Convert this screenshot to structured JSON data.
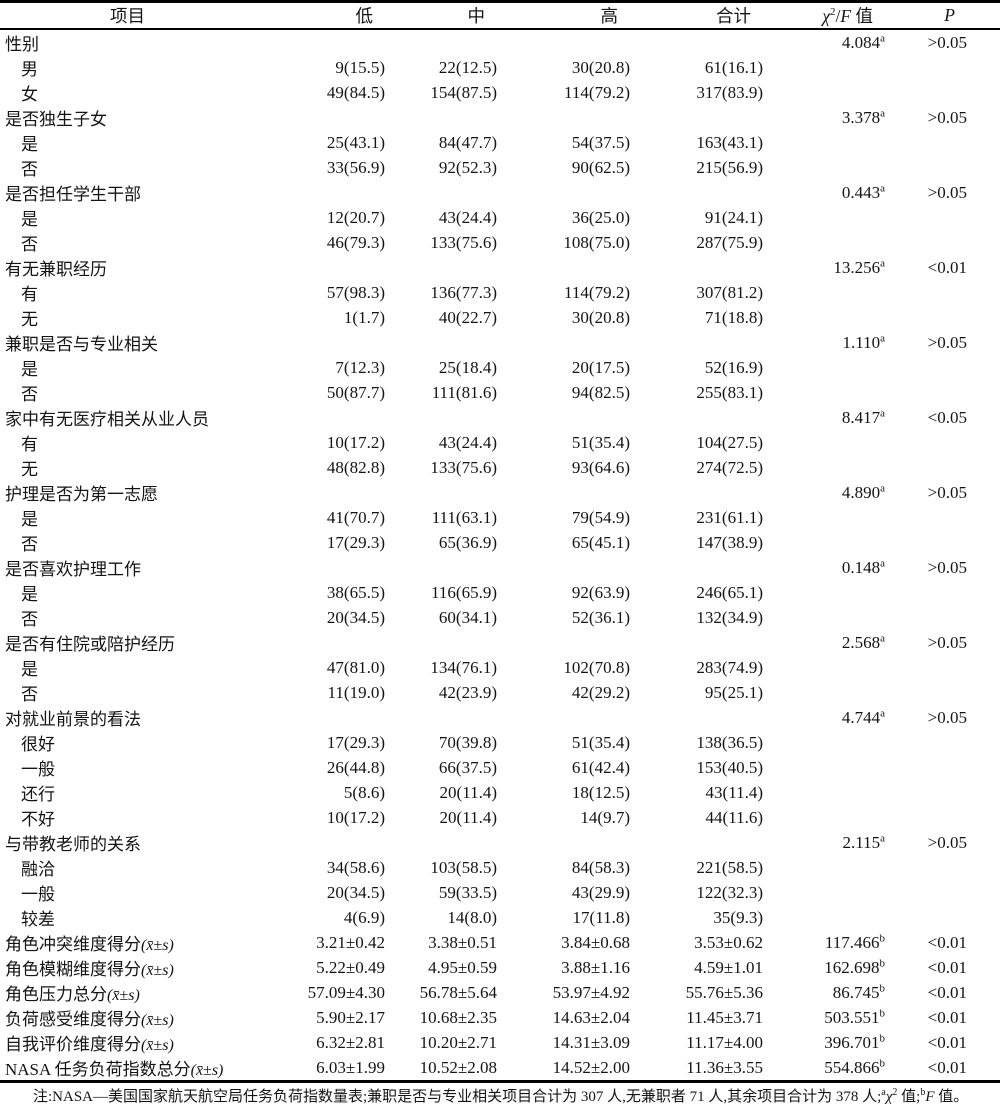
{
  "table": {
    "headers": {
      "item": "项目",
      "low": "低",
      "mid": "中",
      "high": "高",
      "total": "合计",
      "stat_chi": "χ",
      "stat_chi_sup": "2",
      "stat_slash": "/",
      "stat_f": "F",
      "stat_unit": " 值",
      "p": "P"
    },
    "rows": [
      {
        "type": "group",
        "label": "性别",
        "stat": "4.084",
        "stat_sup": "a",
        "p": ">0.05"
      },
      {
        "type": "sub",
        "label": "男",
        "low": "9(15.5)",
        "mid": "22(12.5)",
        "high": "30(20.8)",
        "total": "61(16.1)"
      },
      {
        "type": "sub",
        "label": "女",
        "low": "49(84.5)",
        "mid": "154(87.5)",
        "high": "114(79.2)",
        "total": "317(83.9)"
      },
      {
        "type": "group",
        "label": "是否独生子女",
        "stat": "3.378",
        "stat_sup": "a",
        "p": ">0.05"
      },
      {
        "type": "sub",
        "label": "是",
        "low": "25(43.1)",
        "mid": "84(47.7)",
        "high": "54(37.5)",
        "total": "163(43.1)"
      },
      {
        "type": "sub",
        "label": "否",
        "low": "33(56.9)",
        "mid": "92(52.3)",
        "high": "90(62.5)",
        "total": "215(56.9)"
      },
      {
        "type": "group",
        "label": "是否担任学生干部",
        "stat": "0.443",
        "stat_sup": "a",
        "p": ">0.05"
      },
      {
        "type": "sub",
        "label": "是",
        "low": "12(20.7)",
        "mid": "43(24.4)",
        "high": "36(25.0)",
        "total": "91(24.1)"
      },
      {
        "type": "sub",
        "label": "否",
        "low": "46(79.3)",
        "mid": "133(75.6)",
        "high": "108(75.0)",
        "total": "287(75.9)"
      },
      {
        "type": "group",
        "label": "有无兼职经历",
        "stat": "13.256",
        "stat_sup": "a",
        "p": "<0.01"
      },
      {
        "type": "sub",
        "label": "有",
        "low": "57(98.3)",
        "mid": "136(77.3)",
        "high": "114(79.2)",
        "total": "307(81.2)"
      },
      {
        "type": "sub",
        "label": "无",
        "low": "1(1.7)",
        "mid": "40(22.7)",
        "high": "30(20.8)",
        "total": "71(18.8)"
      },
      {
        "type": "group",
        "label": "兼职是否与专业相关",
        "stat": "1.110",
        "stat_sup": "a",
        "p": ">0.05"
      },
      {
        "type": "sub",
        "label": "是",
        "low": "7(12.3)",
        "mid": "25(18.4)",
        "high": "20(17.5)",
        "total": "52(16.9)"
      },
      {
        "type": "sub",
        "label": "否",
        "low": "50(87.7)",
        "mid": "111(81.6)",
        "high": "94(82.5)",
        "total": "255(83.1)"
      },
      {
        "type": "group",
        "label": "家中有无医疗相关从业人员",
        "stat": "8.417",
        "stat_sup": "a",
        "p": "<0.05"
      },
      {
        "type": "sub",
        "label": "有",
        "low": "10(17.2)",
        "mid": "43(24.4)",
        "high": "51(35.4)",
        "total": "104(27.5)"
      },
      {
        "type": "sub",
        "label": "无",
        "low": "48(82.8)",
        "mid": "133(75.6)",
        "high": "93(64.6)",
        "total": "274(72.5)"
      },
      {
        "type": "group",
        "label": "护理是否为第一志愿",
        "stat": "4.890",
        "stat_sup": "a",
        "p": ">0.05"
      },
      {
        "type": "sub",
        "label": "是",
        "low": "41(70.7)",
        "mid": "111(63.1)",
        "high": "79(54.9)",
        "total": "231(61.1)"
      },
      {
        "type": "sub",
        "label": "否",
        "low": "17(29.3)",
        "mid": "65(36.9)",
        "high": "65(45.1)",
        "total": "147(38.9)"
      },
      {
        "type": "group",
        "label": "是否喜欢护理工作",
        "stat": "0.148",
        "stat_sup": "a",
        "p": ">0.05"
      },
      {
        "type": "sub",
        "label": "是",
        "low": "38(65.5)",
        "mid": "116(65.9)",
        "high": "92(63.9)",
        "total": "246(65.1)"
      },
      {
        "type": "sub",
        "label": "否",
        "low": "20(34.5)",
        "mid": "60(34.1)",
        "high": "52(36.1)",
        "total": "132(34.9)"
      },
      {
        "type": "group",
        "label": "是否有住院或陪护经历",
        "stat": "2.568",
        "stat_sup": "a",
        "p": ">0.05"
      },
      {
        "type": "sub",
        "label": "是",
        "low": "47(81.0)",
        "mid": "134(76.1)",
        "high": "102(70.8)",
        "total": "283(74.9)"
      },
      {
        "type": "sub",
        "label": "否",
        "low": "11(19.0)",
        "mid": "42(23.9)",
        "high": "42(29.2)",
        "total": "95(25.1)"
      },
      {
        "type": "group",
        "label": "对就业前景的看法",
        "stat": "4.744",
        "stat_sup": "a",
        "p": ">0.05"
      },
      {
        "type": "sub",
        "label": "很好",
        "low": "17(29.3)",
        "mid": "70(39.8)",
        "high": "51(35.4)",
        "total": "138(36.5)"
      },
      {
        "type": "sub",
        "label": "一般",
        "low": "26(44.8)",
        "mid": "66(37.5)",
        "high": "61(42.4)",
        "total": "153(40.5)"
      },
      {
        "type": "sub",
        "label": "还行",
        "low": "5(8.6)",
        "mid": "20(11.4)",
        "high": "18(12.5)",
        "total": "43(11.4)"
      },
      {
        "type": "sub",
        "label": "不好",
        "low": "10(17.2)",
        "mid": "20(11.4)",
        "high": "14(9.7)",
        "total": "44(11.6)"
      },
      {
        "type": "group",
        "label": "与带教老师的关系",
        "stat": "2.115",
        "stat_sup": "a",
        "p": ">0.05"
      },
      {
        "type": "sub",
        "label": "融洽",
        "low": "34(58.6)",
        "mid": "103(58.5)",
        "high": "84(58.3)",
        "total": "221(58.5)"
      },
      {
        "type": "sub",
        "label": "一般",
        "low": "20(34.5)",
        "mid": "59(33.5)",
        "high": "43(29.9)",
        "total": "122(32.3)"
      },
      {
        "type": "sub",
        "label": "较差",
        "low": "4(6.9)",
        "mid": "14(8.0)",
        "high": "17(11.8)",
        "total": "35(9.3)"
      },
      {
        "type": "measure",
        "label": "角色冲突维度得分",
        "note": "(x̄±s)",
        "low": "3.21±0.42",
        "mid": "3.38±0.51",
        "high": "3.84±0.68",
        "total": "3.53±0.62",
        "stat": "117.466",
        "stat_sup": "b",
        "p": "<0.01"
      },
      {
        "type": "measure",
        "label": "角色模糊维度得分",
        "note": "(x̄±s)",
        "low": "5.22±0.49",
        "mid": "4.95±0.59",
        "high": "3.88±1.16",
        "total": "4.59±1.01",
        "stat": "162.698",
        "stat_sup": "b",
        "p": "<0.01"
      },
      {
        "type": "measure",
        "label": "角色压力总分",
        "note": "(x̄±s)",
        "low": "57.09±4.30",
        "mid": "56.78±5.64",
        "high": "53.97±4.92",
        "total": "55.76±5.36",
        "stat": "86.745",
        "stat_sup": "b",
        "p": "<0.01"
      },
      {
        "type": "measure",
        "label": "负荷感受维度得分",
        "note": "(x̄±s)",
        "low": "5.90±2.17",
        "mid": "10.68±2.35",
        "high": "14.63±2.04",
        "total": "11.45±3.71",
        "stat": "503.551",
        "stat_sup": "b",
        "p": "<0.01"
      },
      {
        "type": "measure",
        "label": "自我评价维度得分",
        "note": "(x̄±s)",
        "low": "6.32±2.81",
        "mid": "10.20±2.71",
        "high": "14.31±3.09",
        "total": "11.17±4.00",
        "stat": "396.701",
        "stat_sup": "b",
        "p": "<0.01"
      },
      {
        "type": "measure",
        "label": "NASA 任务负荷指数总分",
        "note": "(x̄±s)",
        "low": "6.03±1.99",
        "mid": "10.52±2.08",
        "high": "14.52±2.00",
        "total": "11.36±3.55",
        "stat": "554.866",
        "stat_sup": "b",
        "p": "<0.01"
      }
    ],
    "footnote": {
      "prefix": "注:NASA—美国国家航天航空局任务负荷指数量表;兼职是否与专业相关项目合计为 307 人,无兼职者 71 人,其余项目合计为 378 人;",
      "sup_a": "a",
      "chi": "χ",
      "chi_sup": "2",
      "mid": " 值;",
      "sup_b": "b",
      "f": "F",
      "end": " 值。"
    }
  }
}
